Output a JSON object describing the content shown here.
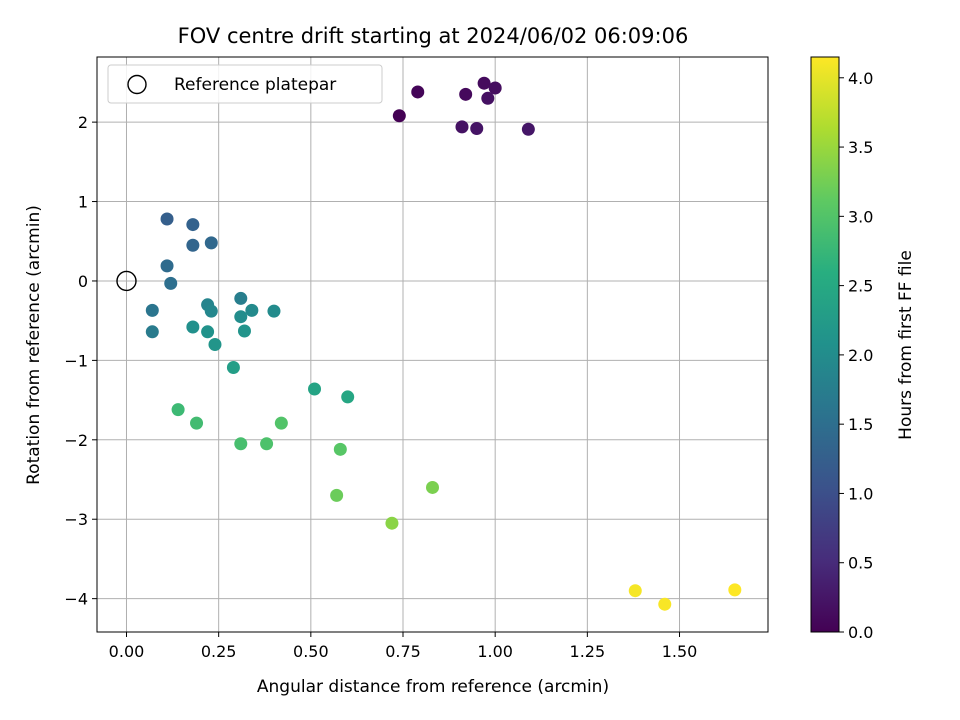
{
  "chart_data": {
    "type": "scatter",
    "title": "FOV centre drift starting at 2024/06/02 06:09:06",
    "xlabel": "Angular distance from reference (arcmin)",
    "ylabel": "Rotation from reference (arcmin)",
    "xlim": [
      -0.08,
      1.74
    ],
    "ylim": [
      -4.42,
      2.82
    ],
    "xticks": [
      "0.00",
      "0.25",
      "0.50",
      "0.75",
      "1.00",
      "1.25",
      "1.50"
    ],
    "xtick_values": [
      0,
      0.25,
      0.5,
      0.75,
      1.0,
      1.25,
      1.5
    ],
    "yticks": [
      "−4",
      "−3",
      "−2",
      "−1",
      "0",
      "1",
      "2"
    ],
    "ytick_values": [
      -4,
      -3,
      -2,
      -1,
      0,
      1,
      2
    ],
    "grid": true,
    "legend": {
      "position": "top-left",
      "entries": [
        {
          "label": "Reference platepar",
          "marker": "open-circle"
        }
      ]
    },
    "reference_point": {
      "x": 0,
      "y": 0
    },
    "colorbar": {
      "label": "Hours from first FF file",
      "colormap": "viridis",
      "range": [
        0,
        4.15
      ],
      "ticks": [
        "0.0",
        "0.5",
        "1.0",
        "1.5",
        "2.0",
        "2.5",
        "3.0",
        "3.5",
        "4.0"
      ],
      "tick_values": [
        0,
        0.5,
        1.0,
        1.5,
        2.0,
        2.5,
        3.0,
        3.5,
        4.0
      ]
    },
    "points": [
      {
        "x": 0.74,
        "y": 2.08,
        "c": 0.0
      },
      {
        "x": 0.79,
        "y": 2.38,
        "c": 0.05
      },
      {
        "x": 0.92,
        "y": 2.35,
        "c": 0.1
      },
      {
        "x": 0.97,
        "y": 2.49,
        "c": 0.12
      },
      {
        "x": 1.0,
        "y": 2.43,
        "c": 0.15
      },
      {
        "x": 0.98,
        "y": 2.3,
        "c": 0.18
      },
      {
        "x": 0.91,
        "y": 1.94,
        "c": 0.2
      },
      {
        "x": 0.95,
        "y": 1.92,
        "c": 0.22
      },
      {
        "x": 1.09,
        "y": 1.91,
        "c": 0.25
      },
      {
        "x": 0.11,
        "y": 0.78,
        "c": 1.25
      },
      {
        "x": 0.18,
        "y": 0.71,
        "c": 1.3
      },
      {
        "x": 0.18,
        "y": 0.45,
        "c": 1.35
      },
      {
        "x": 0.23,
        "y": 0.48,
        "c": 1.4
      },
      {
        "x": 0.11,
        "y": 0.19,
        "c": 1.45
      },
      {
        "x": 0.12,
        "y": -0.03,
        "c": 1.5
      },
      {
        "x": 0.07,
        "y": -0.37,
        "c": 1.6
      },
      {
        "x": 0.07,
        "y": -0.64,
        "c": 1.7
      },
      {
        "x": 0.31,
        "y": -0.22,
        "c": 1.75
      },
      {
        "x": 0.22,
        "y": -0.3,
        "c": 1.85
      },
      {
        "x": 0.23,
        "y": -0.38,
        "c": 1.9
      },
      {
        "x": 0.34,
        "y": -0.37,
        "c": 1.95
      },
      {
        "x": 0.4,
        "y": -0.38,
        "c": 1.97
      },
      {
        "x": 0.31,
        "y": -0.45,
        "c": 2.0
      },
      {
        "x": 0.18,
        "y": -0.58,
        "c": 2.05
      },
      {
        "x": 0.22,
        "y": -0.64,
        "c": 2.1
      },
      {
        "x": 0.32,
        "y": -0.63,
        "c": 2.12
      },
      {
        "x": 0.24,
        "y": -0.8,
        "c": 2.15
      },
      {
        "x": 0.29,
        "y": -1.09,
        "c": 2.3
      },
      {
        "x": 0.51,
        "y": -1.36,
        "c": 2.4
      },
      {
        "x": 0.6,
        "y": -1.46,
        "c": 2.45
      },
      {
        "x": 0.14,
        "y": -1.62,
        "c": 2.8
      },
      {
        "x": 0.19,
        "y": -1.79,
        "c": 2.85
      },
      {
        "x": 0.31,
        "y": -2.05,
        "c": 2.9
      },
      {
        "x": 0.38,
        "y": -2.05,
        "c": 2.95
      },
      {
        "x": 0.42,
        "y": -1.79,
        "c": 3.0
      },
      {
        "x": 0.58,
        "y": -2.12,
        "c": 3.05
      },
      {
        "x": 0.57,
        "y": -2.7,
        "c": 3.2
      },
      {
        "x": 0.83,
        "y": -2.6,
        "c": 3.3
      },
      {
        "x": 0.72,
        "y": -3.05,
        "c": 3.4
      },
      {
        "x": 1.38,
        "y": -3.9,
        "c": 4.1
      },
      {
        "x": 1.46,
        "y": -4.07,
        "c": 4.12
      },
      {
        "x": 1.65,
        "y": -3.89,
        "c": 4.15
      }
    ]
  }
}
